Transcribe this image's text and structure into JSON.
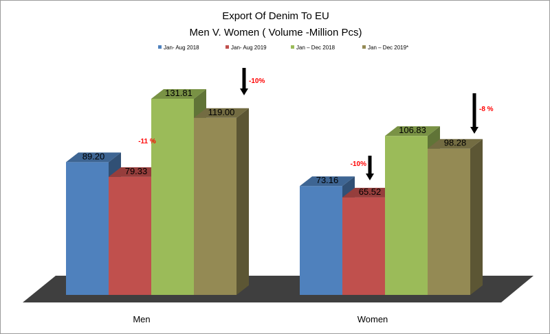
{
  "chart_data": {
    "type": "bar",
    "title": "Export Of Denim To EU",
    "subtitle": "Men V. Women ( Volume -Million Pcs)",
    "xlabel": "",
    "ylabel": "",
    "ylim": [
      0,
      140
    ],
    "grid": false,
    "legend_position": "top",
    "style": "3d-bars",
    "categories": [
      "Men",
      "Women"
    ],
    "series": [
      {
        "name": "Jan- Aug 2018",
        "color": "#4f81bd",
        "values": [
          89.2,
          73.16
        ],
        "labels": [
          "89.20",
          "73.16"
        ]
      },
      {
        "name": "Jan- Aug 2019",
        "color": "#c0504d",
        "values": [
          79.33,
          65.52
        ],
        "labels": [
          "79.33",
          "65.52"
        ]
      },
      {
        "name": "Jan – Dec 2018",
        "color": "#9bbb59",
        "values": [
          131.81,
          106.83
        ],
        "labels": [
          "131.81",
          "106.83"
        ]
      },
      {
        "name": "Jan – Dec 2019*",
        "color": "#948a54",
        "values": [
          119.0,
          98.28
        ],
        "labels": [
          "119.00",
          "98.28"
        ]
      }
    ],
    "annotations": [
      {
        "text": "-11 %",
        "category": "Men",
        "comparison": "Jan- Aug 2019 vs Jan- Aug 2018",
        "arrow": false
      },
      {
        "text": "-10%",
        "category": "Men",
        "comparison": "Jan – Dec 2019* vs Jan – Dec 2018",
        "arrow": true
      },
      {
        "text": "-10%",
        "category": "Women",
        "comparison": "Jan- Aug 2019 vs Jan- Aug 2018",
        "arrow": true
      },
      {
        "text": "-8 %",
        "category": "Women",
        "comparison": "Jan – Dec 2019* vs Jan – Dec 2018",
        "arrow": true
      }
    ],
    "colors": {
      "arrow": "#000000",
      "annotation_text": "#ff0000",
      "floor": "#3f3f3f"
    }
  }
}
